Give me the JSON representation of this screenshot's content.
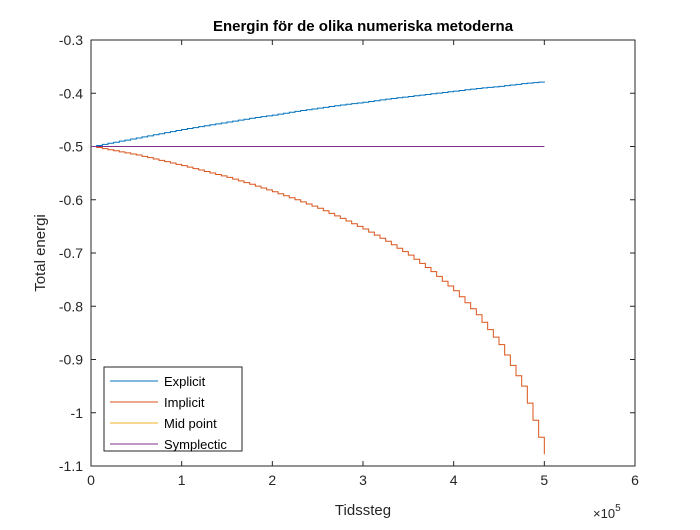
{
  "chart_data": {
    "type": "line",
    "title": "Energin för de olika numeriska metoderna",
    "xlabel": "Tidssteg",
    "ylabel": "Total energi",
    "x_exponent_label": "×10",
    "x_exponent_power": "5",
    "xlim": [
      0,
      6
    ],
    "ylim": [
      -1.1,
      -0.3
    ],
    "x_ticks": [
      0,
      1,
      2,
      3,
      4,
      5,
      6
    ],
    "x_tick_labels": [
      "0",
      "1",
      "2",
      "3",
      "4",
      "5",
      "6"
    ],
    "y_ticks": [
      -1.1,
      -1.0,
      -0.9,
      -0.8,
      -0.7,
      -0.6,
      -0.5,
      -0.4,
      -0.3
    ],
    "y_tick_labels": [
      "-1.1",
      "-1",
      "-0.9",
      "-0.8",
      "-0.7",
      "-0.6",
      "-0.5",
      "-0.4",
      "-0.3"
    ],
    "grid": false,
    "legend_position": "bottom-left",
    "series": [
      {
        "name": "Explicit",
        "color": "#0072BD",
        "x": [
          0,
          0.25,
          0.5,
          0.75,
          1.0,
          1.25,
          1.5,
          1.75,
          2.0,
          2.25,
          2.5,
          2.75,
          3.0,
          3.25,
          3.5,
          3.75,
          4.0,
          4.25,
          4.5,
          4.75,
          5.0
        ],
        "y": [
          -0.5,
          -0.492,
          -0.484,
          -0.476,
          -0.468,
          -0.461,
          -0.454,
          -0.447,
          -0.441,
          -0.434,
          -0.428,
          -0.422,
          -0.417,
          -0.411,
          -0.406,
          -0.401,
          -0.396,
          -0.391,
          -0.387,
          -0.382,
          -0.378
        ]
      },
      {
        "name": "Implicit",
        "color": "#D95319",
        "x": [
          0,
          0.25,
          0.5,
          0.75,
          1.0,
          1.25,
          1.5,
          1.75,
          2.0,
          2.25,
          2.5,
          2.75,
          3.0,
          3.25,
          3.5,
          3.75,
          4.0,
          4.25,
          4.5,
          4.75,
          5.0
        ],
        "y": [
          -0.5,
          -0.508,
          -0.516,
          -0.526,
          -0.536,
          -0.547,
          -0.558,
          -0.571,
          -0.585,
          -0.6,
          -0.616,
          -0.635,
          -0.655,
          -0.678,
          -0.704,
          -0.735,
          -0.771,
          -0.816,
          -0.872,
          -0.95,
          -1.078
        ]
      },
      {
        "name": "Mid point",
        "color": "#EDB120",
        "x": [
          0,
          5.0
        ],
        "y": [
          -0.5,
          -0.5
        ]
      },
      {
        "name": "Symplectic",
        "color": "#7E2F8E",
        "x": [
          0,
          5.0
        ],
        "y": [
          -0.5,
          -0.5
        ]
      }
    ]
  }
}
